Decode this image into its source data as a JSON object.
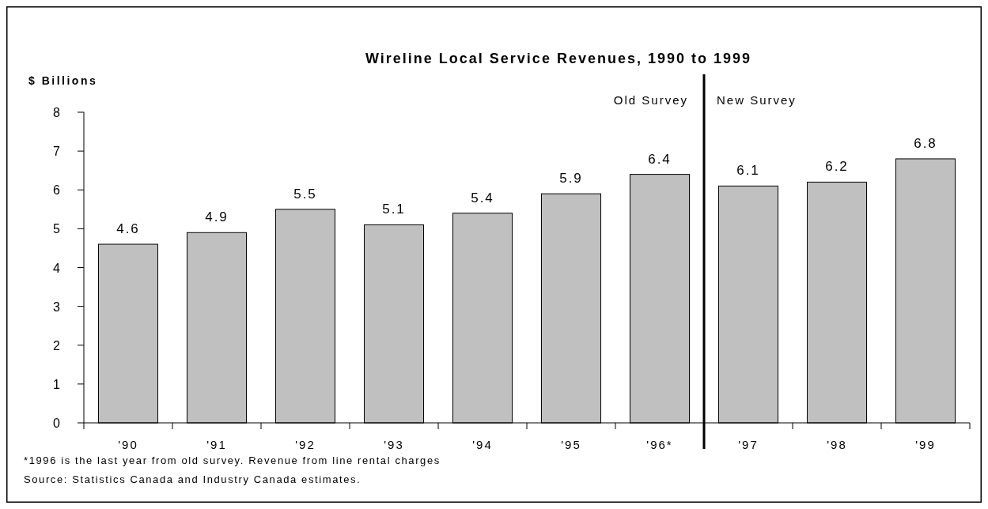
{
  "chart_data": {
    "type": "bar",
    "title": "Wireline Local Service Revenues, 1990 to 1999",
    "ylabel": "$ Billions",
    "categories": [
      "'90",
      "'91",
      "'92",
      "'93",
      "'94",
      "'95",
      "'96*",
      "'97",
      "'98",
      "'99"
    ],
    "values": [
      4.6,
      4.9,
      5.5,
      5.1,
      5.4,
      5.9,
      6.4,
      6.1,
      6.2,
      6.8
    ],
    "color": "#c0c0c0",
    "ylim": [
      0,
      8
    ],
    "yticks": [
      0,
      1,
      2,
      3,
      4,
      5,
      6,
      7,
      8
    ],
    "data_labels": true,
    "grid": false,
    "annotations": [
      "Old Survey",
      "New Survey",
      "*1996 is the last year from old survey. Revenue from line rental charges",
      "Source: Statistics Canada and Industry Canada estimates."
    ]
  }
}
